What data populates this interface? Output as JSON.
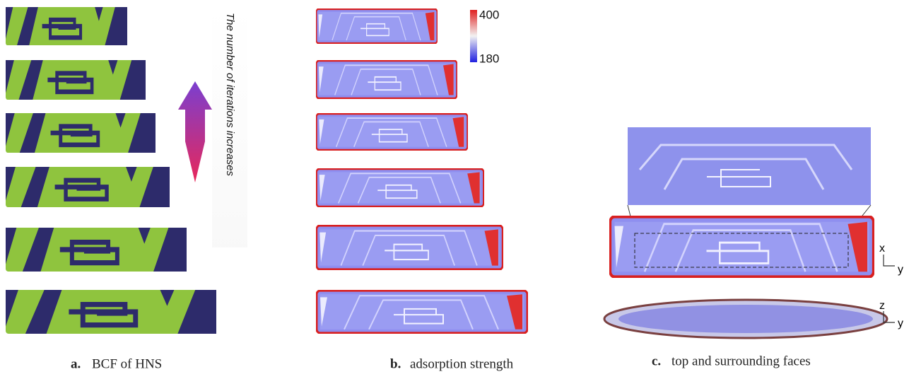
{
  "panel_a": {
    "label": "a.",
    "caption": "BCF of HNS"
  },
  "arrow_label": "The number of iterations increases",
  "panel_b": {
    "label": "b.",
    "caption": "adsorption strength",
    "colorbar": {
      "max": 400,
      "min": 180
    }
  },
  "panel_c": {
    "label": "c.",
    "caption": "top and surrounding faces",
    "axes_top": {
      "vertical": "x",
      "horizontal": "y"
    },
    "axes_side": {
      "vertical": "z",
      "horizontal": "y"
    }
  }
}
